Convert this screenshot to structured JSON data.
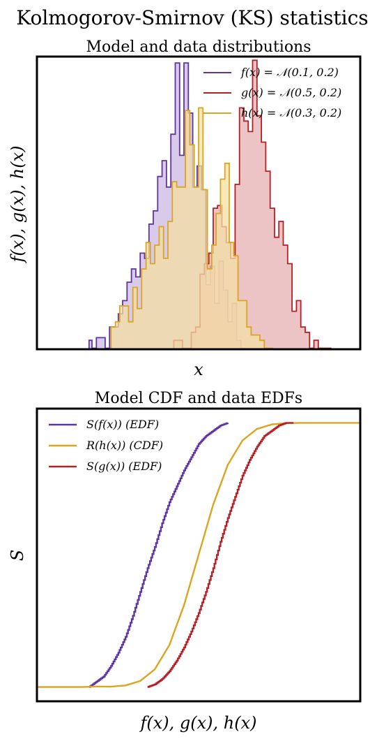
{
  "suptitle": "Kolmogorov-Smirnov (KS) statistics",
  "colors": {
    "f": "#5e35a0",
    "g": "#b52025",
    "h": "#daa520",
    "f_fill": "#cbb8e0",
    "g_fill": "#e6b0b2",
    "h_fill": "#f4dfa4"
  },
  "chart_data": [
    {
      "type": "area",
      "title": "Model and data distributions",
      "xlabel": "x",
      "ylabel": "f(x), g(x), h(x)",
      "xlim": [
        -0.8,
        1.4
      ],
      "ylim": [
        0,
        11
      ],
      "grid": false,
      "ticks_shown": false,
      "legend_position": "top-right",
      "legend": [
        "f(x) = 𝒩(0.1, 0.2)",
        "g(x) = 𝒩(0.5, 0.2)",
        "h(x) = 𝒩(0.3, 0.2)"
      ],
      "series": [
        {
          "name": "f(x) = 𝒩(0.1, 0.2)",
          "key": "f",
          "x": [
            -0.45,
            -0.43,
            -0.4,
            -0.37,
            -0.34,
            -0.31,
            -0.28,
            -0.25,
            -0.22,
            -0.19,
            -0.16,
            -0.13,
            -0.1,
            -0.07,
            -0.04,
            -0.01,
            0.02,
            0.05,
            0.08,
            0.11,
            0.14,
            0.17,
            0.2,
            0.23,
            0.26,
            0.29,
            0.32,
            0.35,
            0.38,
            0.41,
            0.44,
            0.47,
            0.5,
            0.53,
            0.56,
            0.59
          ],
          "y": [
            0.3,
            0,
            0.4,
            0.4,
            0,
            0.8,
            0.8,
            1.3,
            1.8,
            2.5,
            3.0,
            2.7,
            3.6,
            3.4,
            4.7,
            5.2,
            6.5,
            7.1,
            6.1,
            8.1,
            10.8,
            7.3,
            10.8,
            8.9,
            6.1,
            6.9,
            6.0,
            2.4,
            3.1,
            1.7,
            3.3,
            2.2,
            1.0,
            1.7,
            0.3,
            0
          ],
          "step": "post"
        },
        {
          "name": "g(x) = 𝒩(0.5, 0.2)",
          "key": "g",
          "x": [
            0.13,
            0.16,
            0.19,
            0.22,
            0.25,
            0.28,
            0.31,
            0.34,
            0.37,
            0.4,
            0.43,
            0.46,
            0.49,
            0.52,
            0.55,
            0.58,
            0.61,
            0.64,
            0.67,
            0.7,
            0.73,
            0.76,
            0.79,
            0.82,
            0.85,
            0.88,
            0.91,
            0.94,
            0.97,
            1.0,
            1.03,
            1.06,
            1.09,
            1.12,
            1.15,
            1.18
          ],
          "y": [
            0.3,
            0.3,
            0,
            0,
            0.6,
            0.8,
            2.8,
            3.2,
            3.6,
            5.3,
            5.4,
            4.6,
            4.0,
            3.4,
            6.2,
            9.1,
            8.6,
            8.2,
            10.9,
            8.8,
            7.8,
            6.7,
            5.3,
            4.2,
            4.8,
            3.9,
            3.2,
            1.4,
            1.8,
            0.8,
            0.6,
            0,
            0.3,
            0,
            0,
            0
          ],
          "step": "post"
        },
        {
          "name": "h(x) = 𝒩(0.3, 0.2)",
          "key": "h",
          "x": [
            -0.3,
            -0.27,
            -0.24,
            -0.21,
            -0.18,
            -0.15,
            -0.12,
            -0.09,
            -0.06,
            -0.03,
            0.0,
            0.03,
            0.06,
            0.09,
            0.12,
            0.15,
            0.18,
            0.21,
            0.24,
            0.27,
            0.3,
            0.33,
            0.36,
            0.39,
            0.42,
            0.45,
            0.48,
            0.51,
            0.54,
            0.57,
            0.6,
            0.63,
            0.66,
            0.69,
            0.72,
            0.75,
            0.78
          ],
          "y": [
            0.8,
            1.0,
            1.6,
            1.6,
            1.0,
            2.3,
            1.5,
            3.0,
            4.0,
            3.2,
            3.9,
            4.6,
            3.4,
            4.8,
            6.3,
            6.1,
            6.1,
            9.0,
            7.7,
            6.1,
            9.1,
            6.0,
            3.0,
            3.9,
            5.1,
            6.4,
            7.0,
            4.0,
            3.5,
            1.8,
            1.8,
            0.8,
            0.5,
            0.5,
            0.3,
            0,
            0
          ],
          "step": "post"
        }
      ]
    },
    {
      "type": "line",
      "title": "Model CDF and data EDFs",
      "xlabel": "f(x), g(x), h(x)",
      "ylabel": "S",
      "xlim": [
        -0.8,
        1.4
      ],
      "ylim": [
        -0.05,
        1.05
      ],
      "grid": false,
      "ticks_shown": false,
      "legend_position": "top-left",
      "legend": [
        "S(f(x)) (EDF)",
        "R(h(x)) (CDF)",
        "S(g(x)) (EDF)"
      ],
      "series": [
        {
          "name": "S(f(x)) (EDF)",
          "key": "f",
          "x": [
            -0.45,
            -0.4,
            -0.35,
            -0.3,
            -0.25,
            -0.2,
            -0.15,
            -0.1,
            -0.05,
            0.0,
            0.05,
            0.1,
            0.15,
            0.2,
            0.25,
            0.3,
            0.35,
            0.4,
            0.45,
            0.5
          ],
          "y": [
            0.0,
            0.02,
            0.04,
            0.08,
            0.13,
            0.19,
            0.27,
            0.36,
            0.45,
            0.53,
            0.62,
            0.7,
            0.76,
            0.82,
            0.87,
            0.92,
            0.95,
            0.97,
            0.99,
            1.0
          ]
        },
        {
          "name": "R(h(x)) (CDF)",
          "key": "h",
          "x": [
            -0.8,
            -0.6,
            -0.5,
            -0.4,
            -0.3,
            -0.2,
            -0.1,
            0.0,
            0.1,
            0.2,
            0.3,
            0.4,
            0.5,
            0.6,
            0.7,
            0.8,
            0.9,
            1.0,
            1.2,
            1.4
          ],
          "y": [
            0.0,
            0.0,
            0.0,
            0.002,
            0.0013,
            0.006,
            0.023,
            0.067,
            0.159,
            0.309,
            0.5,
            0.691,
            0.841,
            0.933,
            0.977,
            0.994,
            0.999,
            1.0,
            1.0,
            1.0
          ]
        },
        {
          "name": "S(g(x)) (EDF)",
          "key": "g",
          "x": [
            -0.05,
            0.0,
            0.05,
            0.1,
            0.15,
            0.2,
            0.25,
            0.3,
            0.35,
            0.4,
            0.45,
            0.5,
            0.55,
            0.6,
            0.65,
            0.7,
            0.75,
            0.8,
            0.85,
            0.9,
            0.95
          ],
          "y": [
            0.0,
            0.01,
            0.03,
            0.06,
            0.1,
            0.15,
            0.21,
            0.28,
            0.36,
            0.45,
            0.55,
            0.64,
            0.72,
            0.8,
            0.86,
            0.91,
            0.95,
            0.97,
            0.99,
            1.0,
            1.0
          ]
        }
      ]
    }
  ]
}
